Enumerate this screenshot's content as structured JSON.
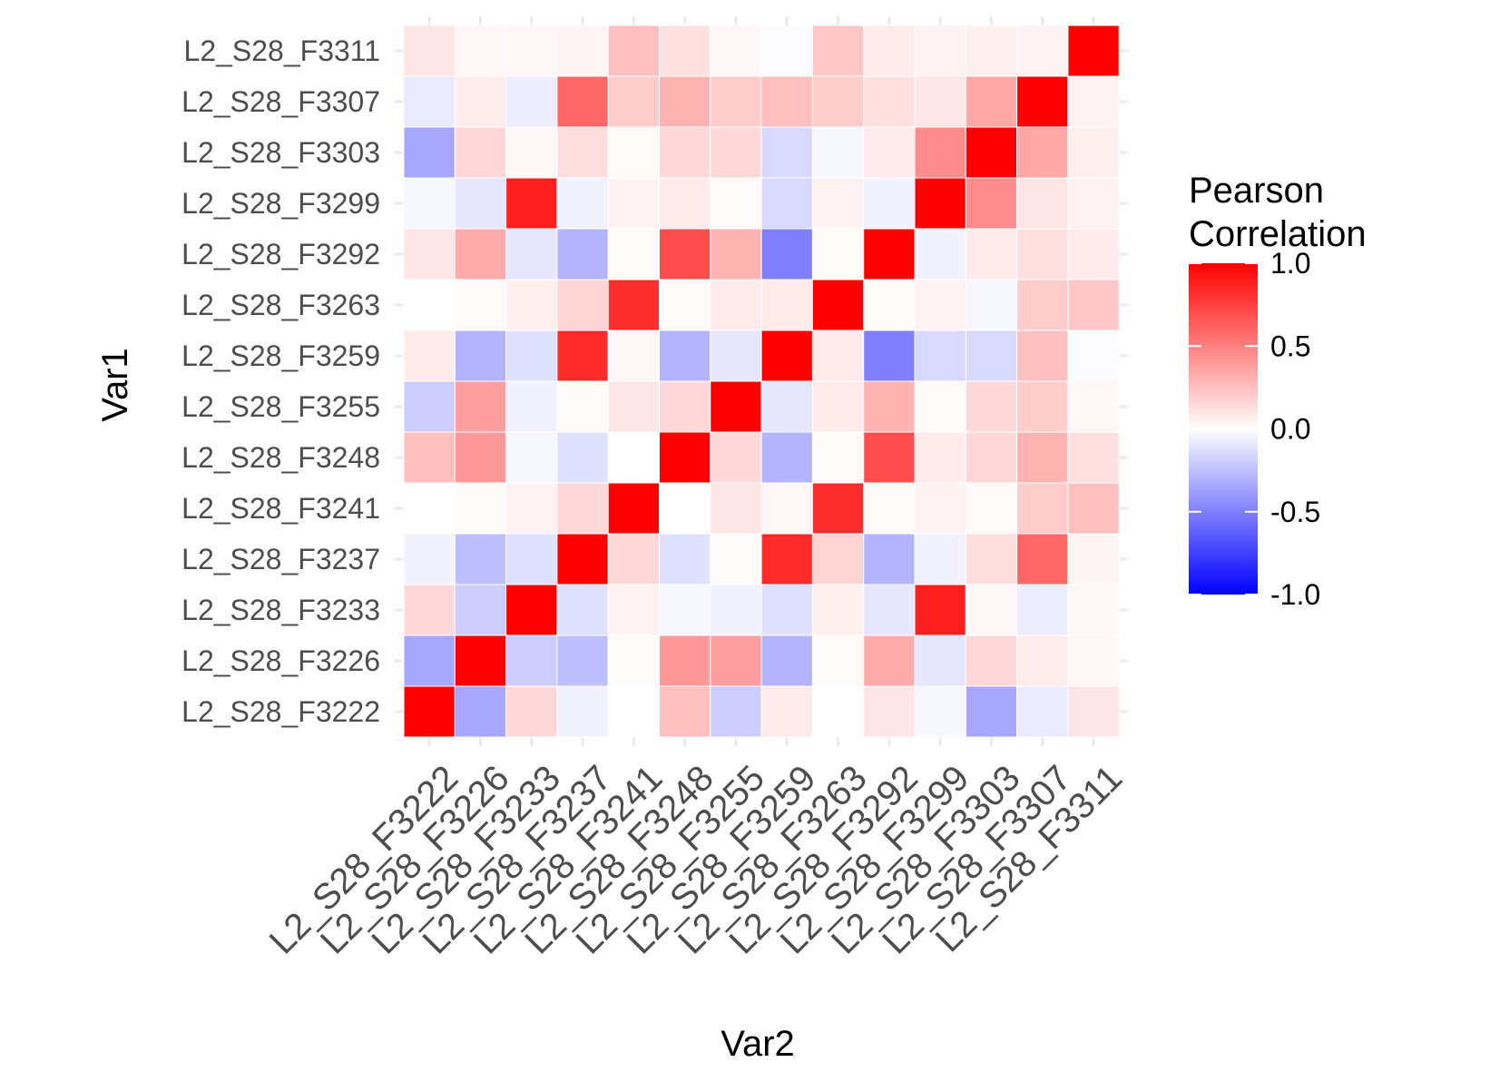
{
  "chart_data": {
    "type": "heatmap",
    "title": "",
    "xlabel": "Var2",
    "ylabel": "Var1",
    "x_categories": [
      "L2_S28_F3222",
      "L2_S28_F3226",
      "L2_S28_F3233",
      "L2_S28_F3237",
      "L2_S28_F3241",
      "L2_S28_F3248",
      "L2_S28_F3255",
      "L2_S28_F3259",
      "L2_S28_F3263",
      "L2_S28_F3292",
      "L2_S28_F3299",
      "L2_S28_F3303",
      "L2_S28_F3307",
      "L2_S28_F3311"
    ],
    "y_categories": [
      "L2_S28_F3222",
      "L2_S28_F3226",
      "L2_S28_F3233",
      "L2_S28_F3237",
      "L2_S28_F3241",
      "L2_S28_F3248",
      "L2_S28_F3255",
      "L2_S28_F3259",
      "L2_S28_F3263",
      "L2_S28_F3292",
      "L2_S28_F3299",
      "L2_S28_F3303",
      "L2_S28_F3307",
      "L2_S28_F3311"
    ],
    "values": [
      [
        1.0,
        -0.35,
        0.15,
        -0.05,
        0.0,
        0.25,
        -0.2,
        0.08,
        0.0,
        0.1,
        -0.03,
        -0.35,
        -0.08,
        0.1
      ],
      [
        -0.35,
        1.0,
        -0.2,
        -0.25,
        0.02,
        0.4,
        0.38,
        -0.3,
        0.02,
        0.33,
        -0.1,
        0.15,
        0.07,
        0.03
      ],
      [
        0.15,
        -0.2,
        1.0,
        -0.12,
        0.05,
        -0.03,
        -0.05,
        -0.12,
        0.06,
        -0.1,
        0.88,
        0.03,
        -0.07,
        0.03
      ],
      [
        -0.05,
        -0.25,
        -0.12,
        1.0,
        0.15,
        -0.12,
        0.02,
        0.83,
        0.17,
        -0.3,
        -0.05,
        0.13,
        0.6,
        0.04
      ],
      [
        0.0,
        0.02,
        0.05,
        0.15,
        1.0,
        0.0,
        0.1,
        0.03,
        0.82,
        0.02,
        0.05,
        0.02,
        0.2,
        0.25
      ],
      [
        0.25,
        0.4,
        -0.03,
        -0.12,
        0.0,
        1.0,
        0.15,
        -0.3,
        0.02,
        0.7,
        0.08,
        0.15,
        0.3,
        0.12
      ],
      [
        -0.2,
        0.38,
        -0.05,
        0.02,
        0.1,
        0.15,
        1.0,
        -0.1,
        0.08,
        0.3,
        0.02,
        0.15,
        0.2,
        0.03
      ],
      [
        0.08,
        -0.3,
        -0.12,
        0.83,
        0.03,
        -0.3,
        -0.1,
        1.0,
        0.08,
        -0.5,
        -0.15,
        -0.15,
        0.25,
        -0.02
      ],
      [
        0.0,
        0.02,
        0.06,
        0.17,
        0.82,
        0.02,
        0.08,
        0.08,
        1.0,
        0.02,
        0.05,
        -0.03,
        0.2,
        0.22
      ],
      [
        0.1,
        0.33,
        -0.1,
        -0.3,
        0.02,
        0.7,
        0.3,
        -0.5,
        0.02,
        1.0,
        -0.05,
        0.08,
        0.12,
        0.08
      ],
      [
        -0.03,
        -0.1,
        0.88,
        -0.05,
        0.05,
        0.08,
        0.02,
        -0.15,
        0.05,
        -0.05,
        1.0,
        0.45,
        0.1,
        0.05
      ],
      [
        -0.35,
        0.15,
        0.03,
        0.13,
        0.02,
        0.15,
        0.15,
        -0.15,
        -0.03,
        0.08,
        0.45,
        1.0,
        0.35,
        0.06
      ],
      [
        -0.08,
        0.07,
        -0.07,
        0.6,
        0.2,
        0.3,
        0.2,
        0.25,
        0.2,
        0.12,
        0.1,
        0.35,
        1.0,
        0.05
      ],
      [
        0.1,
        0.03,
        0.03,
        0.04,
        0.25,
        0.12,
        0.03,
        -0.02,
        0.22,
        0.08,
        0.05,
        0.06,
        0.05,
        1.0
      ]
    ],
    "legend": {
      "title_lines": [
        "Pearson",
        "Correlation"
      ],
      "ticks": [
        1.0,
        0.5,
        0.0,
        -0.5,
        -1.0
      ],
      "tick_labels": [
        "1.0",
        "0.5",
        "0.0",
        "-0.5",
        "-1.0"
      ],
      "range": [
        -1.0,
        1.0
      ],
      "low_color": "#0000ff",
      "mid_color": "#ffffff",
      "high_color": "#ff0000",
      "placement": "right"
    },
    "grid": true,
    "cell_border_color": "#ffffff",
    "grid_color": "#ebebeb"
  }
}
